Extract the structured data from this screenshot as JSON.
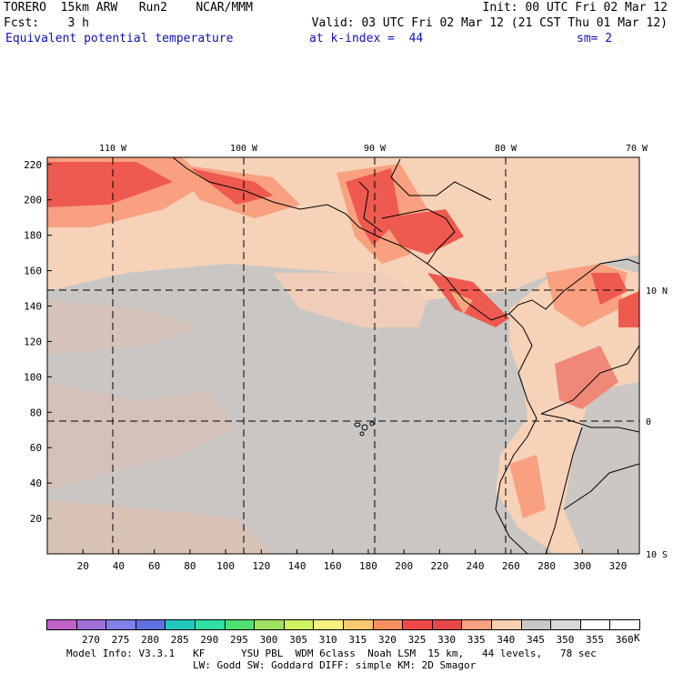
{
  "header": {
    "line1_left": "TORERO  15km ARW   Run2    NCAR/MMM",
    "line1_right": "Init: 00 UTC Fri 02 Mar 12",
    "line2_left": "Fcst:    3 h",
    "line2_right": "Valid: 03 UTC Fri 02 Mar 12 (21 CST Thu 01 Mar 12)",
    "field": "Equivalent potential temperature",
    "kindex": "at k-index =  44",
    "sm": "sm= 2"
  },
  "map": {
    "lon_labels": [
      "110 W",
      "100 W",
      "90 W",
      "80 W",
      "70 W"
    ],
    "lat_labels": [
      "10 N",
      "0",
      "10 S"
    ],
    "y_ticks": [
      "220",
      "200",
      "180",
      "160",
      "140",
      "120",
      "100",
      "80",
      "60",
      "40",
      "20"
    ],
    "x_ticks": [
      "20",
      "40",
      "60",
      "80",
      "100",
      "120",
      "140",
      "160",
      "180",
      "200",
      "220",
      "240",
      "260",
      "280",
      "300",
      "320"
    ]
  },
  "colorbar": {
    "labels": [
      "270",
      "275",
      "280",
      "285",
      "290",
      "295",
      "300",
      "305",
      "310",
      "315",
      "320",
      "325",
      "330",
      "335",
      "340",
      "345",
      "350",
      "355",
      "360"
    ],
    "unit": "K",
    "colors": [
      "#c060c8",
      "#a070d8",
      "#8080e8",
      "#6070e0",
      "#20c8c0",
      "#30e0a0",
      "#50e070",
      "#a0e060",
      "#d0f060",
      "#f8f080",
      "#f8c870",
      "#f89060",
      "#f04848",
      "#e84848",
      "#f8a080",
      "#f8d0b0",
      "#c8c8c8",
      "#d8d8d8",
      "#ffffff"
    ]
  },
  "footer": {
    "line1": "Model Info: V3.3.1   KF      YSU PBL  WDM 6class  Noah LSM  15 km,   44 levels,   78 sec",
    "line2": "LW: Godd SW: Goddard DIFF: simple KM: 2D Smagor"
  }
}
